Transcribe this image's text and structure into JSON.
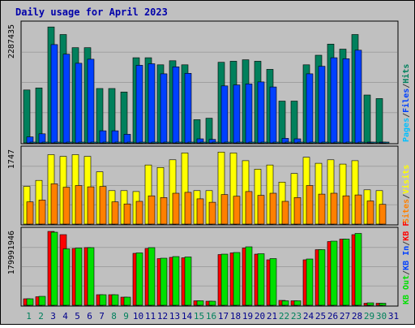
{
  "chart_data": {
    "type": "bar",
    "title": "Daily usage for April 2023",
    "colors": {
      "frame": "#c0c0c0",
      "plot_bg": "#c0c0c0",
      "title_text": "#0000aa",
      "hits": "#00805c",
      "files": "#0040ff",
      "pages": "#00c0ff",
      "visits": "#ffff00",
      "sites": "#ff8000",
      "kb_in": "#ff0000",
      "kb_out": "#00e000",
      "weekday_label": "#00008b",
      "weekend_label": "#00805c"
    },
    "days": [
      "1",
      "2",
      "3",
      "4",
      "5",
      "6",
      "7",
      "8",
      "9",
      "10",
      "11",
      "12",
      "13",
      "14",
      "15",
      "16",
      "17",
      "18",
      "19",
      "20",
      "21",
      "22",
      "23",
      "24",
      "25",
      "26",
      "27",
      "28",
      "29",
      "30",
      "31"
    ],
    "weekend_days": [
      "1",
      "2",
      "8",
      "9",
      "15",
      "16",
      "22",
      "23",
      "29",
      "30"
    ],
    "panels": [
      {
        "id": "top",
        "scale_label": "2287435",
        "legend": [
          {
            "text": "Pages",
            "color": "#00c0ff"
          },
          {
            "text": "/",
            "color": "#404040"
          },
          {
            "text": "Files",
            "color": "#0040ff"
          },
          {
            "text": "/",
            "color": "#404040"
          },
          {
            "text": "Hits",
            "color": "#00805c"
          }
        ],
        "ymax": 2400000,
        "series": [
          {
            "name": "Hits",
            "color": "#00805c",
            "values": [
              1050000,
              1090000,
              2300000,
              2150000,
              1890000,
              1890000,
              1080000,
              1080000,
              1010000,
              1690000,
              1690000,
              1550000,
              1630000,
              1550000,
              460000,
              490000,
              1600000,
              1620000,
              1650000,
              1620000,
              1460000,
              830000,
              830000,
              1550000,
              1740000,
              1960000,
              1860000,
              2150000,
              950000,
              880000,
              0
            ]
          },
          {
            "name": "Files",
            "color": "#0040ff",
            "values": [
              120000,
              180000,
              1950000,
              1760000,
              1580000,
              1660000,
              240000,
              240000,
              170000,
              1540000,
              1570000,
              1370000,
              1510000,
              1380000,
              80000,
              70000,
              1130000,
              1150000,
              1170000,
              1210000,
              1110000,
              90000,
              80000,
              1370000,
              1520000,
              1690000,
              1670000,
              1840000,
              10000,
              10000,
              0
            ]
          },
          {
            "name": "Pages",
            "color": "#00c0ff",
            "values": [
              10000,
              10000,
              10000,
              10000,
              10000,
              10000,
              10000,
              10000,
              10000,
              10000,
              10000,
              10000,
              10000,
              10000,
              10000,
              10000,
              10000,
              10000,
              10000,
              10000,
              10000,
              10000,
              10000,
              10000,
              10000,
              10000,
              10000,
              10000,
              10000,
              10000,
              0
            ]
          }
        ]
      },
      {
        "id": "middle",
        "scale_label": "1747",
        "legend": [
          {
            "text": "Sites",
            "color": "#ff8000"
          },
          {
            "text": "/",
            "color": "#404040"
          },
          {
            "text": "Visits",
            "color": "#ffff00"
          }
        ],
        "ymax": 1800,
        "series": [
          {
            "name": "Visits",
            "color": "#ffff00",
            "values": [
              880,
              1020,
              1620,
              1580,
              1620,
              1580,
              1220,
              780,
              780,
              760,
              1380,
              1320,
              1500,
              1660,
              780,
              780,
              1680,
              1660,
              1480,
              1280,
              1380,
              980,
              1180,
              1560,
              1420,
              1500,
              1400,
              1480,
              800,
              780,
              0
            ]
          },
          {
            "name": "Sites",
            "color": "#ff8000",
            "values": [
              520,
              560,
              940,
              860,
              900,
              870,
              880,
              520,
              470,
              530,
              660,
              620,
              720,
              740,
              590,
              510,
              690,
              650,
              760,
              670,
              720,
              530,
              620,
              900,
              700,
              720,
              660,
              680,
              540,
              460,
              0
            ]
          }
        ]
      },
      {
        "id": "bottom",
        "scale_label": "179991946",
        "legend": [
          {
            "text": "KB Out",
            "color": "#00e000"
          },
          {
            "text": "/",
            "color": "#404040"
          },
          {
            "text": "KB In",
            "color": "#0040ff"
          },
          {
            "text": "/",
            "color": "#404040"
          },
          {
            "text": "KB F",
            "color": "#ff0000"
          }
        ],
        "ymax": 190000000,
        "series": [
          {
            "name": "KB F",
            "color": "#ff0000",
            "values": [
              16000000,
              21000000,
              182000000,
              174000000,
              140000000,
              142000000,
              26000000,
              26000000,
              20000000,
              128000000,
              140000000,
              115000000,
              118000000,
              117000000,
              11000000,
              10000000,
              125000000,
              129000000,
              141000000,
              126000000,
              112000000,
              12000000,
              11000000,
              112000000,
              137000000,
              157000000,
              163000000,
              174000000,
              5000000,
              5000000,
              0
            ]
          },
          {
            "name": "KB Out",
            "color": "#00e000",
            "values": [
              16000000,
              22000000,
              180000000,
              139000000,
              141000000,
              142000000,
              26000000,
              26000000,
              20000000,
              129000000,
              142000000,
              116000000,
              120000000,
              119000000,
              11000000,
              10000000,
              126000000,
              130000000,
              144000000,
              127000000,
              115000000,
              11000000,
              11000000,
              114000000,
              137000000,
              158000000,
              163000000,
              177000000,
              6000000,
              5000000,
              0
            ]
          }
        ]
      }
    ]
  }
}
